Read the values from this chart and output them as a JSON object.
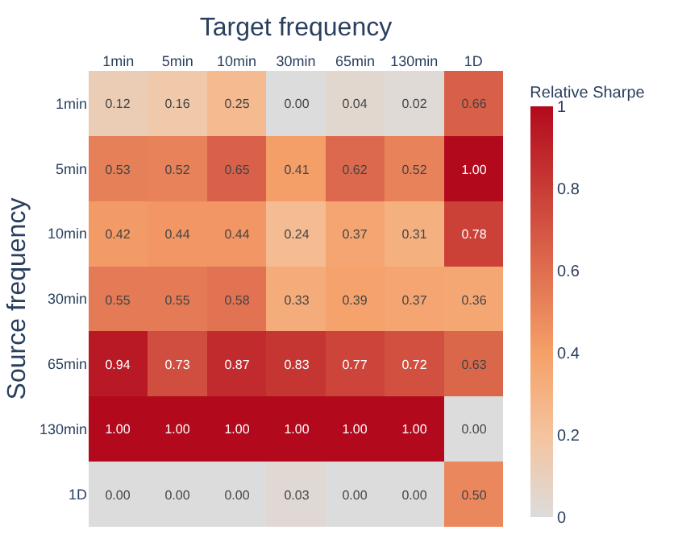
{
  "chart_data": {
    "type": "heatmap",
    "xlabel": "Target frequency",
    "ylabel": "Source frequency",
    "clabel": "Relative Sharpe",
    "categories": [
      "1min",
      "5min",
      "10min",
      "30min",
      "65min",
      "130min",
      "1D"
    ],
    "y_categories": [
      "1min",
      "5min",
      "10min",
      "30min",
      "65min",
      "130min",
      "1D"
    ],
    "cells": [
      [
        0.12,
        0.16,
        0.25,
        0.0,
        0.04,
        0.02,
        0.66
      ],
      [
        0.53,
        0.52,
        0.65,
        0.41,
        0.62,
        0.52,
        1.0
      ],
      [
        0.42,
        0.44,
        0.44,
        0.24,
        0.37,
        0.31,
        0.78
      ],
      [
        0.55,
        0.55,
        0.58,
        0.33,
        0.39,
        0.37,
        0.36
      ],
      [
        0.94,
        0.73,
        0.87,
        0.83,
        0.77,
        0.72,
        0.63
      ],
      [
        1.0,
        1.0,
        1.0,
        1.0,
        1.0,
        1.0,
        0.0
      ],
      [
        0.0,
        0.0,
        0.0,
        0.03,
        0.0,
        0.0,
        0.5
      ]
    ],
    "cell_labels": [
      [
        "0.12",
        "0.16",
        "0.25",
        "0.00",
        "0.04",
        "0.02",
        "0.66"
      ],
      [
        "0.53",
        "0.52",
        "0.65",
        "0.41",
        "0.62",
        "0.52",
        "1.00"
      ],
      [
        "0.42",
        "0.44",
        "0.44",
        "0.24",
        "0.37",
        "0.31",
        "0.78"
      ],
      [
        "0.55",
        "0.55",
        "0.58",
        "0.33",
        "0.39",
        "0.37",
        "0.36"
      ],
      [
        "0.94",
        "0.73",
        "0.87",
        "0.83",
        "0.77",
        "0.72",
        "0.63"
      ],
      [
        "1.00",
        "1.00",
        "1.00",
        "1.00",
        "1.00",
        "1.00",
        "0.00"
      ],
      [
        "0.00",
        "0.00",
        "0.00",
        "0.03",
        "0.00",
        "0.00",
        "0.50"
      ]
    ],
    "clim": [
      0,
      1
    ],
    "cticks": [
      0,
      0.2,
      0.4,
      0.6,
      0.8,
      1
    ]
  }
}
